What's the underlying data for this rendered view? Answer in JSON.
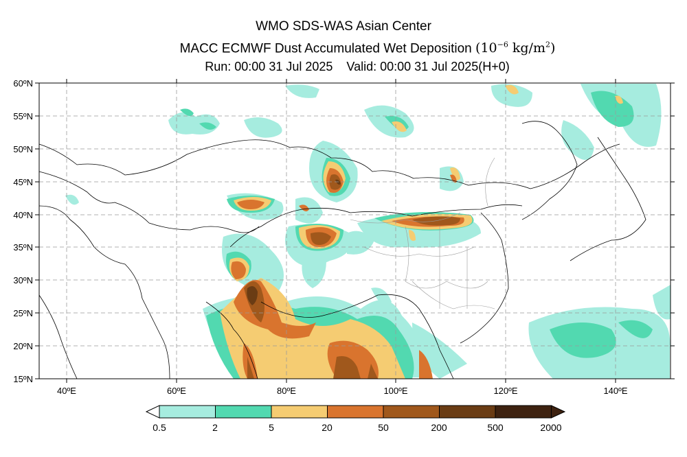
{
  "header": {
    "line1": "WMO SDS-WAS Asian Center",
    "line2": "MACC ECMWF Dust Accumulated Wet Deposition",
    "line2_unit_prefix": "(10",
    "line2_unit_exp": "−6",
    "line2_unit_mid": " kg/m",
    "line2_unit_sq": "2",
    "line2_unit_suffix": ")",
    "run": "Run: 00:00 31 Jul 2025",
    "valid": "Valid: 00:00 31 Jul 2025(H+0)"
  },
  "map": {
    "lat_labels": [
      "60ºN",
      "55ºN",
      "50ºN",
      "45ºN",
      "40ºN",
      "35ºN",
      "30ºN",
      "25ºN",
      "20ºN",
      "15ºN"
    ],
    "lon_labels": [
      "40ºE",
      "60ºE",
      "80ºE",
      "100ºE",
      "120ºE",
      "140ºE"
    ],
    "lon_range": [
      35,
      150
    ],
    "lat_range": [
      15,
      60
    ],
    "grid": true
  },
  "colorbar": {
    "labels": [
      "0.5",
      "2",
      "5",
      "20",
      "50",
      "200",
      "500",
      "2000"
    ],
    "colors": [
      "#a6ecdf",
      "#52d9b0",
      "#f5cc72",
      "#d9742e",
      "#a0581c",
      "#6a3c14",
      "#3e2210"
    ]
  }
}
